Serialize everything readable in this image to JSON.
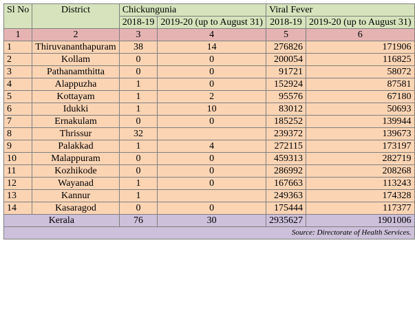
{
  "headers": {
    "sl_no": "Sl No",
    "district": "District",
    "chikungunia": "Chickungunia",
    "viral_fever": "Viral Fever",
    "chik_2018": "2018-19",
    "chik_2019": "2019-20 (up to August 31)",
    "vf_2018": "2018-19",
    "vf_2019": "2019-20 (up to August 31)"
  },
  "index_row": [
    "1",
    "2",
    "3",
    "4",
    "5",
    "6"
  ],
  "rows": [
    {
      "sl": "1",
      "district": "Thiruvananthapuram",
      "c18": "38",
      "c19": "14",
      "v18": "276826",
      "v19": "171906"
    },
    {
      "sl": "2",
      "district": "Kollam",
      "c18": "0",
      "c19": "0",
      "v18": "200054",
      "v19": "116825"
    },
    {
      "sl": "3",
      "district": "Pathanamthitta",
      "c18": "0",
      "c19": "0",
      "v18": "91721",
      "v19": "58072"
    },
    {
      "sl": "4",
      "district": "Alappuzha",
      "c18": "1",
      "c19": "0",
      "v18": "152924",
      "v19": "87581"
    },
    {
      "sl": "5",
      "district": "Kottayam",
      "c18": "1",
      "c19": "2",
      "v18": "95576",
      "v19": "67180"
    },
    {
      "sl": "6",
      "district": "Idukki",
      "c18": "1",
      "c19": "10",
      "v18": "83012",
      "v19": "50693"
    },
    {
      "sl": "7",
      "district": "Ernakulam",
      "c18": "0",
      "c19": "0",
      "v18": "185252",
      "v19": "139944"
    },
    {
      "sl": "8",
      "district": "Thrissur",
      "c18": "32",
      "c19": "",
      "v18": "239372",
      "v19": "139673"
    },
    {
      "sl": "9",
      "district": "Palakkad",
      "c18": "1",
      "c19": "4",
      "v18": "272115",
      "v19": "173197"
    },
    {
      "sl": "10",
      "district": "Malappuram",
      "c18": "0",
      "c19": "0",
      "v18": "459313",
      "v19": "282719"
    },
    {
      "sl": "11",
      "district": "Kozhikode",
      "c18": "0",
      "c19": "0",
      "v18": "286992",
      "v19": "208268"
    },
    {
      "sl": "12",
      "district": "Wayanad",
      "c18": "1",
      "c19": "0",
      "v18": "167663",
      "v19": "113243"
    },
    {
      "sl": "13",
      "district": "Kannur",
      "c18": "1",
      "c19": "",
      "v18": "249363",
      "v19": "174328"
    },
    {
      "sl": "14",
      "district": "Kasaragod",
      "c18": "0",
      "c19": "0",
      "v18": "175444",
      "v19": "117377"
    }
  ],
  "total": {
    "label": "Kerala",
    "c18": "76",
    "c19": "30",
    "v18": "2935627",
    "v19": "1901006"
  },
  "source": "Source: Directorate of Health Services.",
  "colors": {
    "header_bg": "#d6e3bc",
    "index_bg": "#e6b3b3",
    "row_bg": "#fbd4b4",
    "total_bg": "#ccc0da"
  }
}
